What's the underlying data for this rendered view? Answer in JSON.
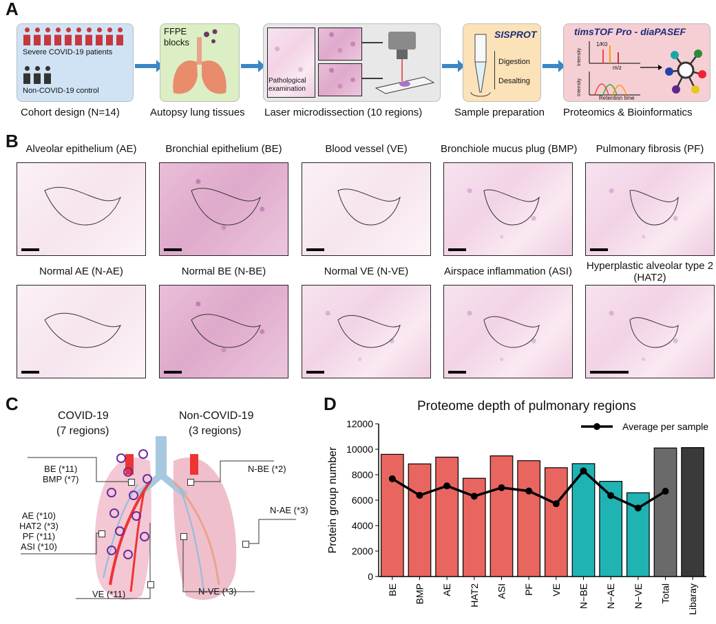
{
  "panels": {
    "a": "A",
    "b": "B",
    "c": "C",
    "d": "D"
  },
  "workflow": {
    "cohort_label": "Cohort design (N=14)",
    "severe": "Severe COVID-19 patients",
    "control": "Non-COVID-19 control",
    "ffpe": "FFPE\nblocks",
    "tissue_label": "Autopsy lung tissues",
    "path_exam": "Pathological\nexamination",
    "lmd_label": "Laser microdissection (10 regions)",
    "sisprot": "SISPROT",
    "digestion": "Digestion",
    "desalting": "Desalting",
    "prep_label": "Sample preparation",
    "tims": "timsTOF Pro - diaPASEF",
    "k0": "1/K0",
    "intensity": "Intensity",
    "mz": "m/z",
    "rt": "Retention time",
    "prot_label": "Proteomics & Bioinformatics",
    "colors": {
      "cohort": "#cfe3f4",
      "tissue": "#dcefc4",
      "lmd": "#e8e8e8",
      "prep": "#fbe2b8",
      "prot": "#f5cfd4",
      "arrow": "#3b86c4",
      "patient": "#c8373d",
      "control": "#333333"
    }
  },
  "histology": {
    "top": [
      "Alveolar epithelium (AE)",
      "Bronchial epithelium (BE)",
      "Blood vessel (VE)",
      "Bronchiole mucus plug (BMP)",
      "Pulmonary fibrosis (PF)"
    ],
    "bottom": [
      "Normal AE (N-AE)",
      "Normal BE (N-BE)",
      "Normal VE (N-VE)",
      "Airspace inflammation (ASI)",
      "Hyperplastic alveolar type 2\n(HAT2)"
    ]
  },
  "lung": {
    "covid_title": "COVID-19",
    "covid_sub": "(7 regions)",
    "non_title": "Non-COVID-19",
    "non_sub": "(3 regions)",
    "c_be": "BE (*11)\nBMP (*7)",
    "c_ae": "AE (*10)\nHAT2 (*3)\nPF (*11)\nASI (*10)",
    "c_ve": "VE (*11)",
    "n_be": "N-BE (*2)",
    "n_ae": "N-AE (*3)",
    "n_ve": "N-VE (*3)"
  },
  "chart_data": {
    "type": "bar",
    "title": "Proteome depth of pulmonary regions",
    "ylabel": "Protein group number",
    "xlabel": "",
    "categories": [
      "BE",
      "BMP",
      "AE",
      "HAT2",
      "ASI",
      "PF",
      "VE",
      "N−BE",
      "N−AE",
      "N−VE",
      "Total",
      "Libaray"
    ],
    "values": [
      9600,
      8850,
      9380,
      7720,
      9480,
      9100,
      8550,
      8870,
      7480,
      6580,
      10100,
      10130
    ],
    "average": [
      7680,
      6380,
      7120,
      6310,
      6980,
      6720,
      5720,
      8300,
      6360,
      5380,
      6700
    ],
    "average_label": "Average per sample",
    "ylim": [
      0,
      12000
    ],
    "yticks": [
      0,
      2000,
      4000,
      6000,
      8000,
      10000,
      12000
    ],
    "bar_colors": [
      "#e8665f",
      "#e8665f",
      "#e8665f",
      "#e8665f",
      "#e8665f",
      "#e8665f",
      "#e8665f",
      "#1fb3b4",
      "#1fb3b4",
      "#1fb3b4",
      "#6a6a6a",
      "#3a3a3a"
    ],
    "legend": "top-right",
    "grid": false
  }
}
